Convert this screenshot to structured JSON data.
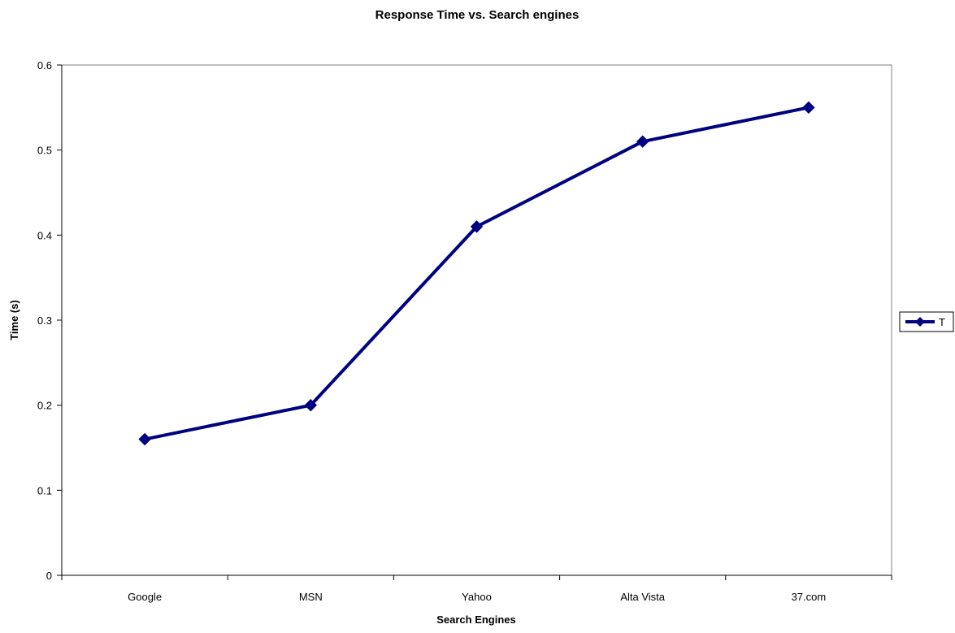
{
  "chart_data": {
    "type": "line",
    "title": "Response Time vs. Search engines",
    "xlabel": "Search Engines",
    "ylabel": "Time (s)",
    "categories": [
      "Google",
      "MSN",
      "Yahoo",
      "Alta Vista",
      "37.com"
    ],
    "series": [
      {
        "name": "T",
        "values": [
          0.16,
          0.2,
          0.41,
          0.51,
          0.55
        ],
        "color": "#000080",
        "marker": "diamond"
      }
    ],
    "ylim": [
      0,
      0.6
    ],
    "yticks": [
      "0",
      "0.1",
      "0.2",
      "0.3",
      "0.4",
      "0.5",
      "0.6"
    ],
    "grid": false,
    "legend_position": "right",
    "plot_border_color": "#808080"
  }
}
